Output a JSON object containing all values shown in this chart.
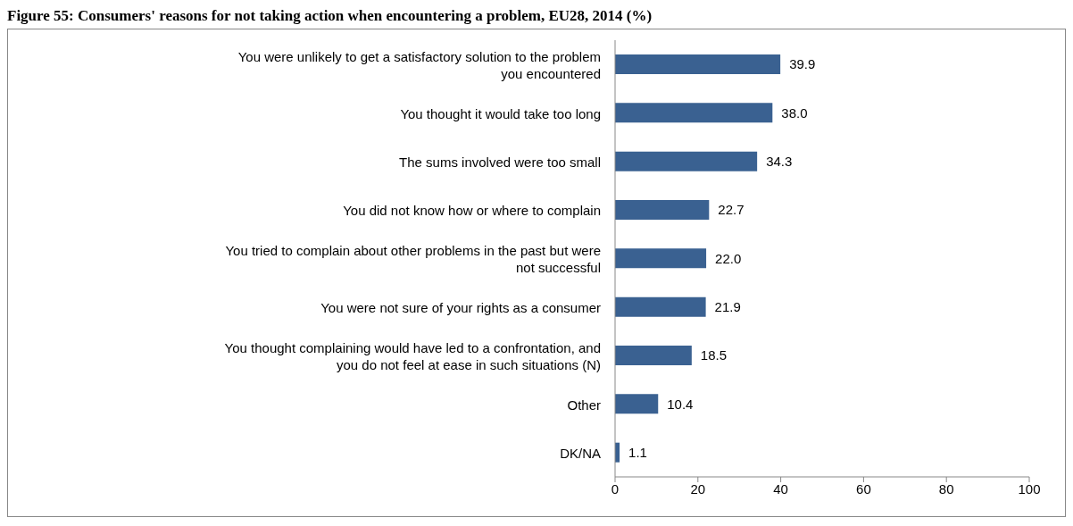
{
  "chart_data": {
    "type": "bar",
    "orientation": "horizontal",
    "title": "Figure 55: Consumers' reasons for not taking action when encountering a problem, EU28, 2014 (%)",
    "categories": [
      "You were unlikely to get a satisfactory solution to the problem you encountered",
      "You thought it would take too long",
      "The sums involved were too small",
      "You did not know how or where to complain",
      "You tried to complain about other problems in the past but were not successful",
      "You were not sure of your rights as a consumer",
      "You thought complaining would have led to a confrontation, and you do not feel at ease in such situations (N)",
      "Other",
      "DK/NA"
    ],
    "values": [
      39.9,
      38.0,
      34.3,
      22.7,
      22.0,
      21.9,
      18.5,
      10.4,
      1.1
    ],
    "value_labels": [
      "39.9",
      "38.0",
      "34.3",
      "22.7",
      "22.0",
      "21.9",
      "18.5",
      "10.4",
      "1.1"
    ],
    "color": "#3a6191",
    "xlim": [
      0,
      100
    ],
    "xticks": [
      0,
      20,
      40,
      60,
      80,
      100
    ],
    "grid": false,
    "legend": false
  }
}
